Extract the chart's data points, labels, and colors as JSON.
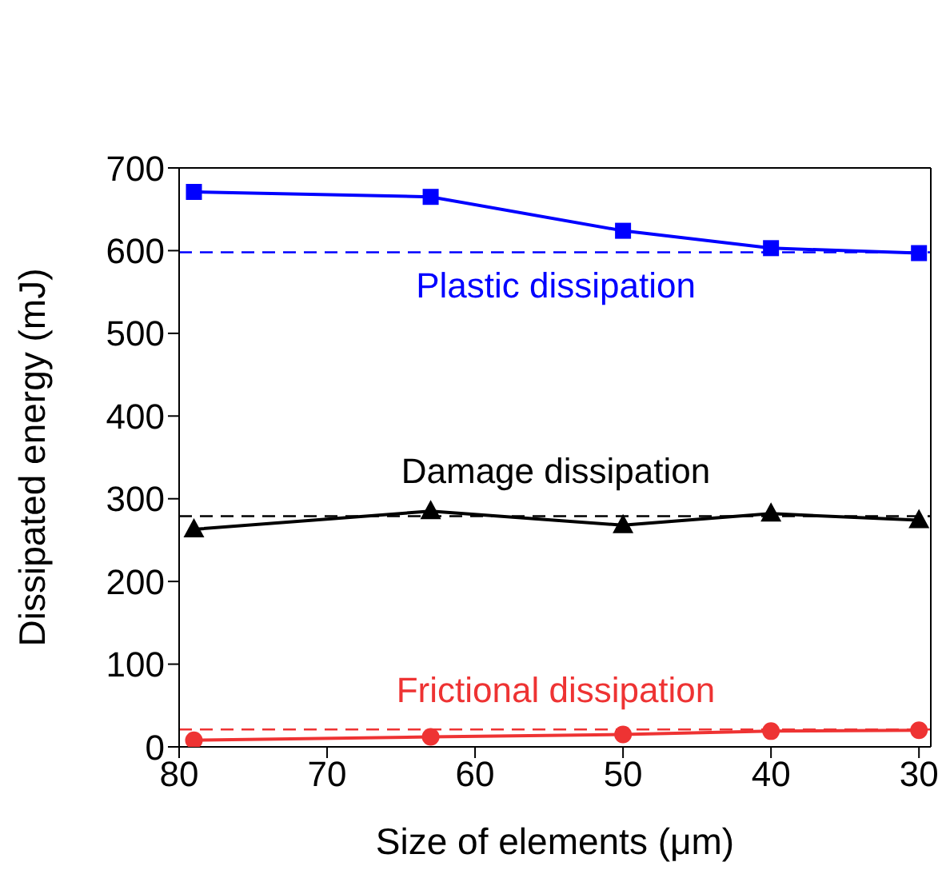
{
  "chart_data": {
    "type": "line",
    "xlabel": "Size of elements (μm)",
    "ylabel": "Dissipated energy (mJ)",
    "x": [
      79,
      63,
      50,
      40,
      30
    ],
    "xlim": [
      80,
      29.2
    ],
    "xticks": [
      80,
      70,
      60,
      50,
      40,
      30
    ],
    "ylim": [
      0,
      700
    ],
    "yticks": [
      0,
      100,
      200,
      300,
      400,
      500,
      600,
      700
    ],
    "grid": false,
    "legend": false,
    "series": [
      {
        "name": "Plastic dissipation",
        "color": "#0000ff",
        "marker": "square",
        "values": [
          671,
          665,
          624,
          603,
          597
        ]
      },
      {
        "name": "Damage dissipation",
        "color": "#000000",
        "marker": "triangle",
        "values": [
          263,
          285,
          268,
          282,
          274
        ]
      },
      {
        "name": "Frictional dissipation",
        "color": "#ee3333",
        "marker": "circle",
        "values": [
          8,
          12,
          15,
          19,
          20
        ]
      }
    ],
    "ref_lines": [
      {
        "axis": "y",
        "value": 598,
        "color": "#0000ff",
        "line_style": "dashed"
      },
      {
        "axis": "y",
        "value": 279,
        "color": "#000000",
        "line_style": "dashed"
      },
      {
        "axis": "y",
        "value": 21,
        "color": "#ee3333",
        "line_style": "dashed"
      }
    ]
  }
}
